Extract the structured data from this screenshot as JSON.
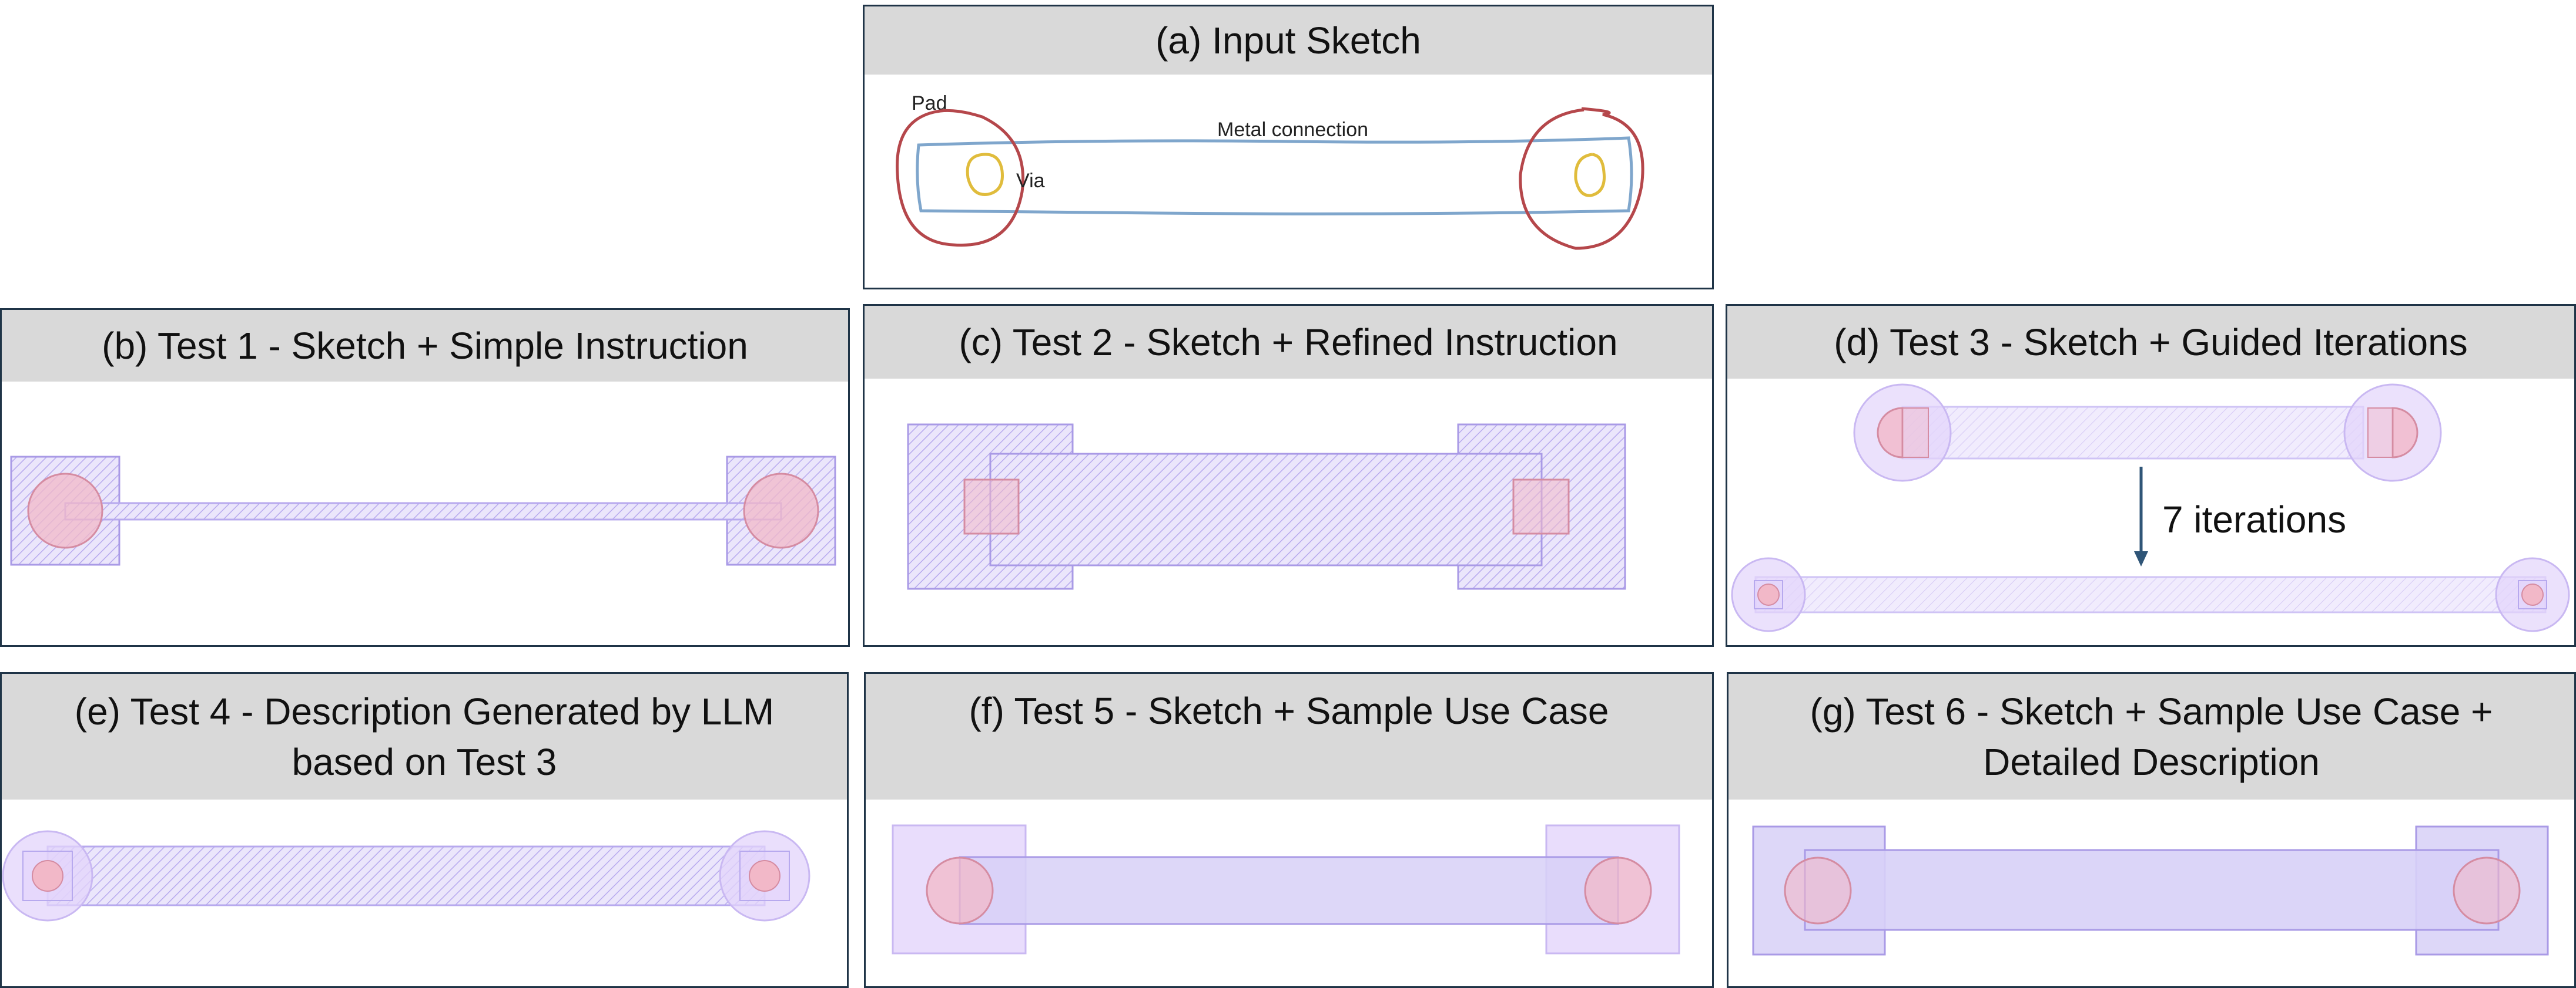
{
  "panels": {
    "a": {
      "title": "(a) Input Sketch",
      "labels": {
        "pad": "Pad",
        "via": "Via",
        "metal": "Metal connection"
      }
    },
    "b": {
      "title": "(b) Test 1 -  Sketch + Simple Instruction"
    },
    "c": {
      "title": "(c) Test 2 -  Sketch + Refined Instruction"
    },
    "d": {
      "title": "(d) Test 3 - Sketch + Guided Iterations",
      "annotation": "7 iterations"
    },
    "e": {
      "title_line1": "(e) Test 4 - Description Generated by LLM",
      "title_line2": "based on Test 3"
    },
    "f": {
      "title": "(f) Test 5 - Sketch + Sample Use Case"
    },
    "g": {
      "title_line1": "(g) Test 6 - Sketch + Sample Use Case +",
      "title_line2": "Detailed Description"
    }
  },
  "colors": {
    "border": "#1f3447",
    "header_bg": "#d9d9d9",
    "sketch_pad": "#b5474b",
    "sketch_metal": "#7fa6cc",
    "sketch_via": "#e0bc3c",
    "metal_fill": "#d7d0f7",
    "metal_stroke": "#a99ae6",
    "pad_fill": "#e3d4fb",
    "via_fill": "#f2b8c8",
    "via_stroke": "#d58ca2",
    "arrow": "#2f5577"
  }
}
